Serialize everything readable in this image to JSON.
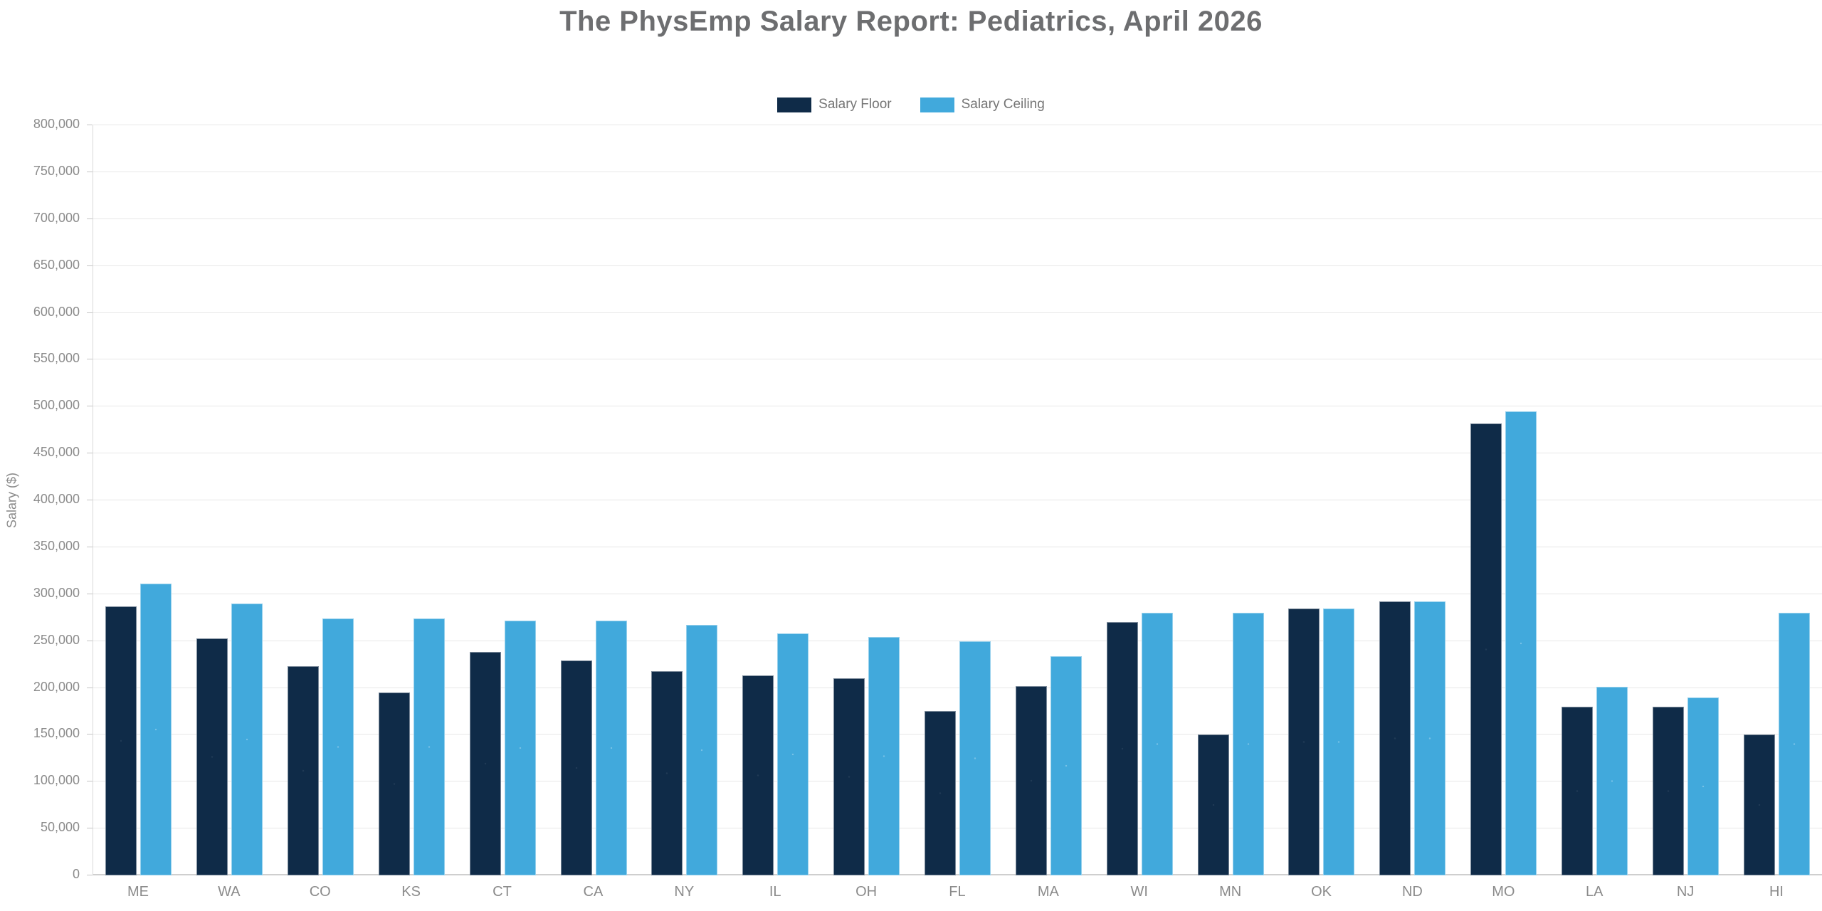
{
  "title": "The PhysEmp Salary Report: Pediatrics, April 2026",
  "y_axis": {
    "label": "Salary ($)",
    "min": 0,
    "max": 800000,
    "step": 50000,
    "ticks": [
      "0",
      "50,000",
      "100,000",
      "150,000",
      "200,000",
      "250,000",
      "300,000",
      "350,000",
      "400,000",
      "450,000",
      "500,000",
      "550,000",
      "600,000",
      "650,000",
      "700,000",
      "750,000",
      "800,000"
    ]
  },
  "chart_data": {
    "type": "bar",
    "title": "The PhysEmp Salary Report: Pediatrics, April 2026",
    "categories": [
      "ME",
      "WA",
      "CO",
      "KS",
      "CT",
      "CA",
      "NY",
      "IL",
      "OH",
      "FL",
      "MA",
      "WI",
      "MN",
      "OK",
      "ND",
      "MO",
      "LA",
      "NJ",
      "HI"
    ],
    "series": [
      {
        "name": "Salary Floor",
        "color": "#0f2b48",
        "values": [
          287000,
          253000,
          223000,
          195000,
          238000,
          229000,
          218000,
          213000,
          210000,
          175000,
          202000,
          270000,
          150000,
          285000,
          292000,
          482000,
          180000,
          180000,
          150000
        ]
      },
      {
        "name": "Salary Ceiling",
        "color": "#41a9dc",
        "values": [
          311000,
          290000,
          274000,
          274000,
          272000,
          272000,
          267000,
          258000,
          254000,
          250000,
          234000,
          280000,
          280000,
          285000,
          292000,
          495000,
          201000,
          190000,
          280000
        ]
      }
    ],
    "xlabel": "",
    "ylabel": "Salary ($)",
    "ylim": [
      0,
      800000
    ],
    "grid": true,
    "legend_position": "top"
  },
  "styles": {
    "grid_color": "#e7e7e7",
    "axis_color": "#d9d9d9",
    "tick_text_color": "#8b8b8b",
    "title_color": "#6d6e70",
    "legend_text_color": "#757575",
    "background": "#ffffff"
  }
}
